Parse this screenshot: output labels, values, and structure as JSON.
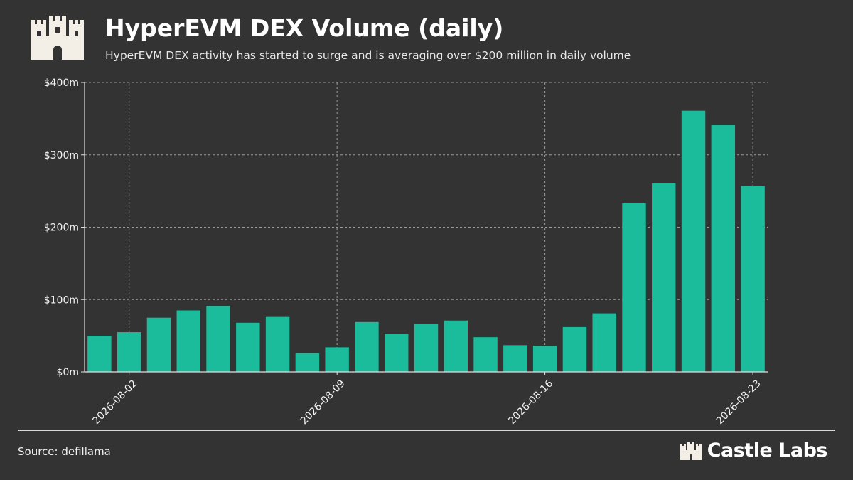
{
  "header": {
    "title": "HyperEVM DEX Volume (daily)",
    "subtitle": "HyperEVM DEX activity has started to surge and is averaging over $200 million in daily volume",
    "logo_icon": "castle-icon"
  },
  "footer": {
    "source": "Source: defillama",
    "brand": "Castle Labs",
    "brand_icon": "castle-icon"
  },
  "colors": {
    "background": "#333333",
    "bar": "#1abc9c",
    "grid": "#9a9a9a",
    "text": "#f2f2f2"
  },
  "chart_data": {
    "type": "bar",
    "title": "",
    "xlabel": "",
    "ylabel": "",
    "ylim": [
      0,
      400
    ],
    "y_unit": "$m",
    "yticks": [
      0,
      100,
      200,
      300,
      400
    ],
    "ytick_labels": [
      "$0m",
      "$100m",
      "$200m",
      "$300m",
      "$400m"
    ],
    "categories": [
      "2026-08-01",
      "2026-08-02",
      "2026-08-03",
      "2026-08-04",
      "2026-08-05",
      "2026-08-06",
      "2026-08-07",
      "2026-08-08",
      "2026-08-09",
      "2026-08-10",
      "2026-08-11",
      "2026-08-12",
      "2026-08-13",
      "2026-08-14",
      "2026-08-15",
      "2026-08-16",
      "2026-08-17",
      "2026-08-18",
      "2026-08-19",
      "2026-08-20",
      "2026-08-21",
      "2026-08-22",
      "2026-08-23"
    ],
    "values": [
      50,
      55,
      75,
      85,
      91,
      68,
      76,
      26,
      34,
      69,
      53,
      66,
      71,
      48,
      37,
      36,
      62,
      81,
      233,
      261,
      361,
      341,
      257
    ],
    "xtick_labels": [
      "2026-08-02",
      "2026-08-09",
      "2026-08-16",
      "2026-08-23"
    ],
    "grid": true,
    "grid_style": "dashed",
    "legend": "none"
  }
}
